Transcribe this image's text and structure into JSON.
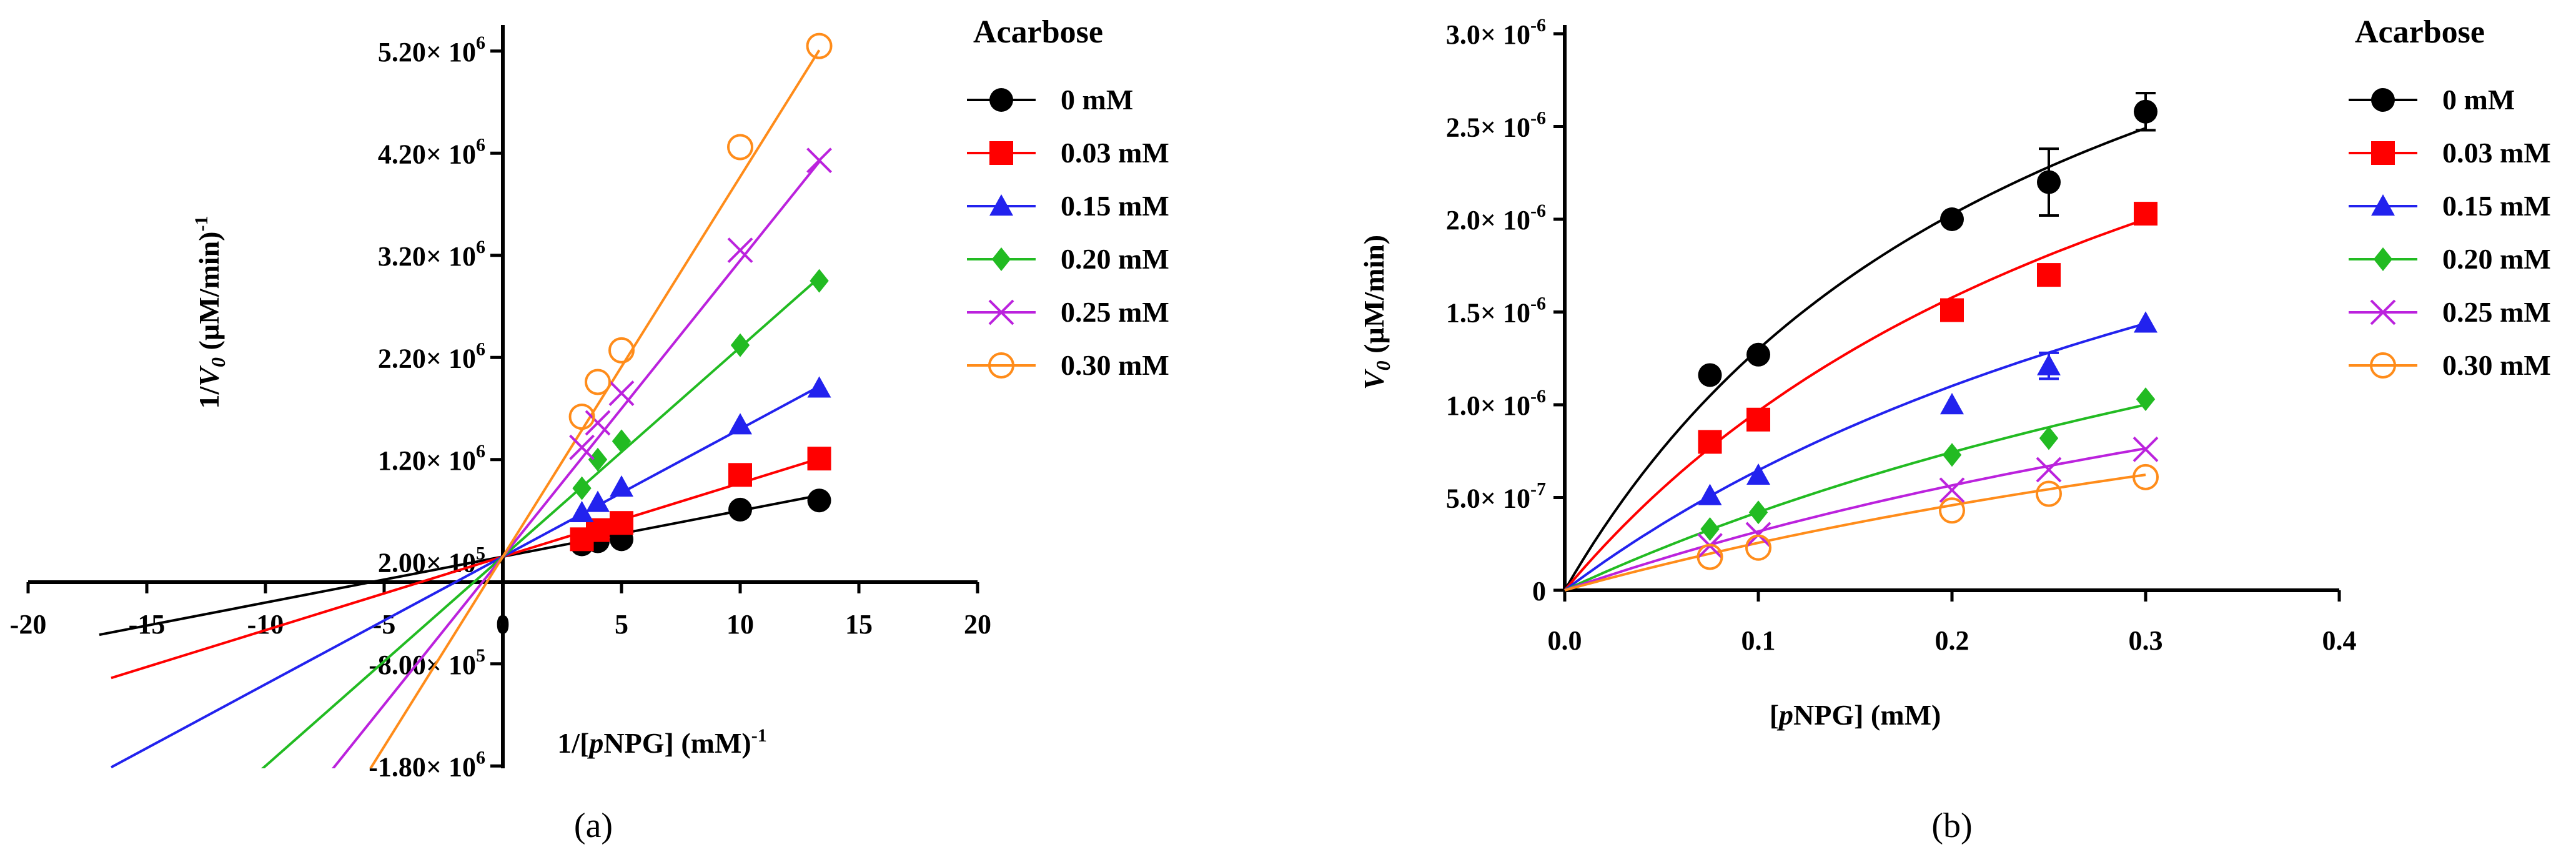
{
  "panel_labels": {
    "a": "(a)",
    "b": "(b)"
  },
  "colors": {
    "0 mM": "#000000",
    "0.03 mM": "#ff0000",
    "0.15 mM": "#2222ee",
    "0.20 mM": "#22bb22",
    "0.25 mM": "#bb22dd",
    "0.30 mM": "#ff8c1a"
  },
  "chart_data": [
    {
      "id": "a",
      "type": "line",
      "subtype": "lineweaver-burk",
      "title": "",
      "xlabel": "1/[pNPG] (mM)",
      "xlabel_parts": {
        "pre": "1/[",
        "italic": "p",
        "post": "NPG] (mM)",
        "sup": "-1"
      },
      "ylabel": "1/V0 (µM/min)",
      "ylabel_parts": {
        "pre": "1/",
        "italic": "V",
        "sub": "0",
        "post": " (µM/min)",
        "sup": "-1"
      },
      "xlim": [
        -20,
        20
      ],
      "ylim": [
        -2200000,
        5600000
      ],
      "x_ticks": [
        -20,
        -15,
        -10,
        -5,
        0,
        5,
        10,
        15,
        20
      ],
      "x_tick_labels": [
        "-20",
        "-15",
        "-10",
        "-5",
        "0",
        "5",
        "10",
        "15",
        "20"
      ],
      "y_ticks": [
        {
          "value": 5200000,
          "mant": "5.20",
          "exp": "6"
        },
        {
          "value": 4200000,
          "mant": "4.20",
          "exp": "6"
        },
        {
          "value": 3200000,
          "mant": "3.20",
          "exp": "6"
        },
        {
          "value": 2200000,
          "mant": "2.20",
          "exp": "6"
        },
        {
          "value": 1200000,
          "mant": "1.20",
          "exp": "6"
        },
        {
          "value": 200000,
          "mant": "2.00",
          "exp": "5"
        },
        {
          "value": -800000,
          "mant": "-8.00",
          "exp": "5"
        },
        {
          "value": -1800000,
          "mant": "-1.80",
          "exp": "6"
        }
      ],
      "legend_title": "Acarbose",
      "legend_position": "right",
      "series": [
        {
          "name": "0 mM",
          "marker": "circle-filled",
          "intercept": 250000,
          "slope": 45000,
          "x": [
            3.33,
            4,
            5,
            10,
            13.33
          ],
          "y": [
            370000,
            400000,
            420000,
            710000,
            800000
          ]
        },
        {
          "name": "0.03 mM",
          "marker": "square-filled",
          "intercept": 250000,
          "slope": 72000,
          "x": [
            3.33,
            4,
            5,
            10,
            13.33
          ],
          "y": [
            420000,
            510000,
            580000,
            1050000,
            1210000
          ]
        },
        {
          "name": "0.15 mM",
          "marker": "triangle-filled",
          "intercept": 250000,
          "slope": 125000,
          "x": [
            3.33,
            4,
            5,
            10,
            13.33
          ],
          "y": [
            680000,
            780000,
            930000,
            1540000,
            1900000
          ]
        },
        {
          "name": "0.20 mM",
          "marker": "diamond-filled",
          "intercept": 250000,
          "slope": 205000,
          "x": [
            3.33,
            4,
            5,
            10,
            13.33
          ],
          "y": [
            920000,
            1200000,
            1380000,
            2320000,
            2950000
          ]
        },
        {
          "name": "0.25 mM",
          "marker": "x",
          "intercept": 250000,
          "slope": 290000,
          "x": [
            3.33,
            4,
            5,
            10,
            13.33
          ],
          "y": [
            1320000,
            1560000,
            1850000,
            3250000,
            4130000
          ]
        },
        {
          "name": "0.30 mM",
          "marker": "circle-open",
          "intercept": 250000,
          "slope": 372000,
          "x": [
            3.33,
            4,
            5,
            10,
            13.33
          ],
          "y": [
            1620000,
            1960000,
            2270000,
            4260000,
            5250000
          ]
        }
      ],
      "fit_range": [
        [
          -17,
          13.33
        ],
        [
          -16.5,
          13.33
        ],
        [
          -16.5,
          13.33
        ],
        [
          -11,
          13.33
        ],
        [
          -8.5,
          13.33
        ],
        [
          -7,
          13.33
        ]
      ]
    },
    {
      "id": "b",
      "type": "scatter",
      "subtype": "michaelis-menten",
      "title": "",
      "xlabel": "[pNPG] (mM)",
      "xlabel_parts": {
        "pre": "[",
        "italic": "p",
        "post": "NPG] (mM)"
      },
      "ylabel": "V0 (µM/min)",
      "ylabel_parts": {
        "italic": "V",
        "sub": "0",
        "post": " (µM/min)"
      },
      "xlim": [
        0,
        0.4
      ],
      "ylim": [
        0,
        3e-06
      ],
      "x_ticks": [
        0.0,
        0.1,
        0.2,
        0.3,
        0.4
      ],
      "x_tick_labels": [
        "0.0",
        "0.1",
        "0.2",
        "0.3",
        "0.4"
      ],
      "y_ticks": [
        {
          "value": 3e-06,
          "mant": "3.0",
          "exp": "-6"
        },
        {
          "value": 2.5e-06,
          "mant": "2.5",
          "exp": "-6"
        },
        {
          "value": 2e-06,
          "mant": "2.0",
          "exp": "-6"
        },
        {
          "value": 1.5e-06,
          "mant": "1.5",
          "exp": "-6"
        },
        {
          "value": 1e-06,
          "mant": "1.0",
          "exp": "-6"
        },
        {
          "value": 5e-07,
          "mant": "5.0",
          "exp": "-7"
        },
        {
          "value": 0,
          "mant": "0",
          "exp": ""
        }
      ],
      "legend_title": "Acarbose",
      "legend_position": "right",
      "series": [
        {
          "name": "0 mM",
          "marker": "circle-filled",
          "vmax": 4.6e-06,
          "km": 0.254,
          "x": [
            0.075,
            0.1,
            0.2,
            0.25,
            0.3
          ],
          "y": [
            1.16e-06,
            1.27e-06,
            2e-06,
            2.2e-06,
            2.58e-06
          ],
          "err": [
            0,
            0,
            0,
            1.8e-07,
            1e-07
          ]
        },
        {
          "name": "0.03 mM",
          "marker": "square-filled",
          "vmax": 4.3e-06,
          "km": 0.345,
          "x": [
            0.075,
            0.1,
            0.2,
            0.25,
            0.3
          ],
          "y": [
            8e-07,
            9.2e-07,
            1.51e-06,
            1.7e-06,
            2.03e-06
          ],
          "err": [
            0,
            0,
            0,
            0,
            0
          ]
        },
        {
          "name": "0.15 mM",
          "marker": "triangle-filled",
          "vmax": 3.7e-06,
          "km": 0.472,
          "x": [
            0.075,
            0.1,
            0.2,
            0.25,
            0.3
          ],
          "y": [
            5.1e-07,
            6.2e-07,
            1e-06,
            1.21e-06,
            1.44e-06
          ],
          "err": [
            0,
            0,
            0,
            7e-08,
            0
          ],
          "hidden": false
        },
        {
          "name": "0.20 mM",
          "marker": "diamond-filled",
          "vmax": 3.2e-06,
          "km": 0.66,
          "x": [
            0.075,
            0.1,
            0.2,
            0.25,
            0.3
          ],
          "y": [
            3.3e-07,
            4.2e-07,
            7.3e-07,
            8.2e-07,
            1.03e-06
          ],
          "err": [
            0,
            0,
            0,
            0,
            0
          ]
        },
        {
          "name": "0.25 mM",
          "marker": "x",
          "vmax": 2.6e-06,
          "km": 0.72,
          "x": [
            0.075,
            0.1,
            0.2,
            0.25,
            0.3
          ],
          "y": [
            2.4e-07,
            3e-07,
            5.4e-07,
            6.5e-07,
            7.6e-07
          ],
          "err": [
            0,
            0,
            0,
            0,
            0
          ]
        },
        {
          "name": "0.30 mM",
          "marker": "circle-open",
          "vmax": 2.2e-06,
          "km": 0.76,
          "x": [
            0.075,
            0.1,
            0.2,
            0.25,
            0.3
          ],
          "y": [
            1.8e-07,
            2.3e-07,
            4.3e-07,
            5.2e-07,
            6.1e-07
          ],
          "err": [
            0,
            0,
            0,
            0,
            0
          ]
        }
      ]
    }
  ]
}
